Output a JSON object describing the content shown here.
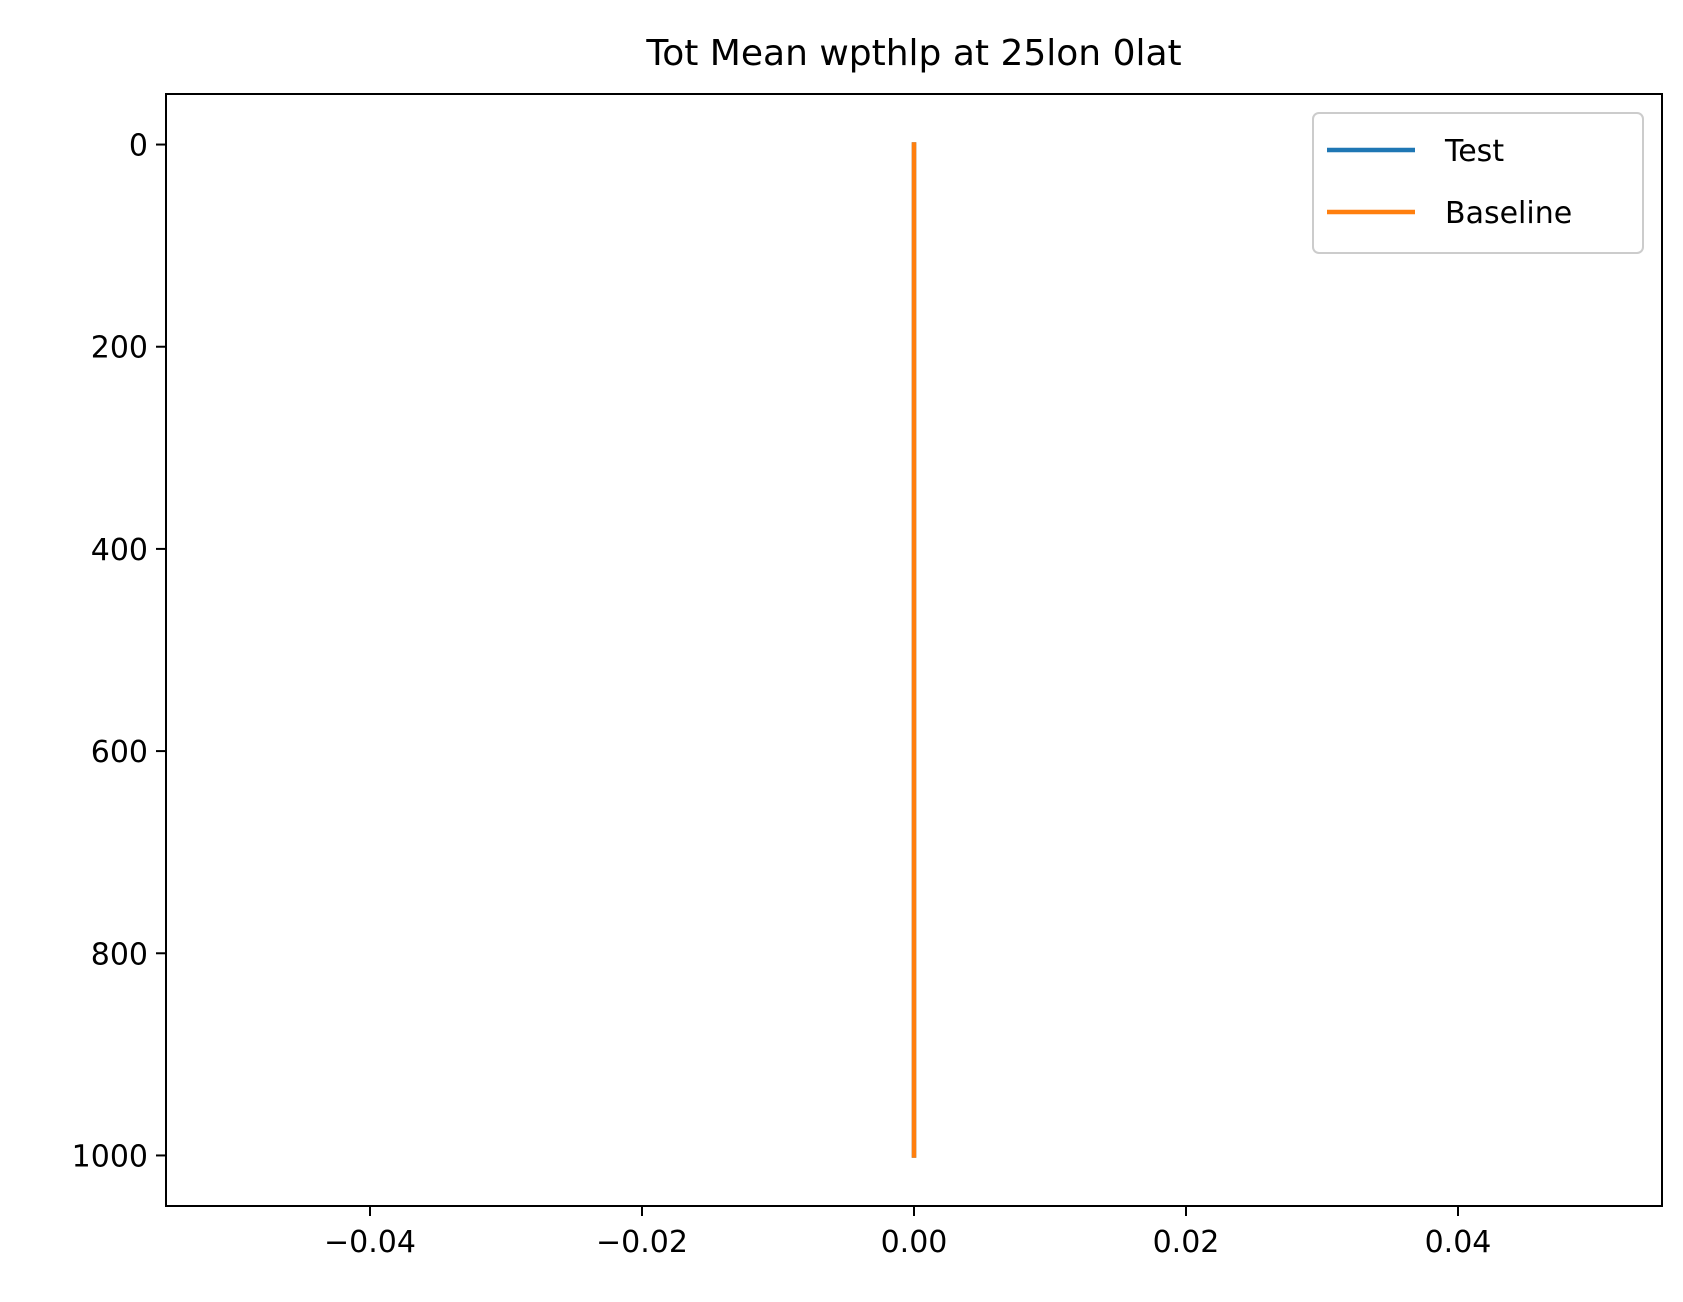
{
  "chart_data": {
    "type": "line",
    "title": "Tot Mean wpthlp at 25lon 0lat",
    "xlabel": "",
    "ylabel": "",
    "xlim": [
      -0.055,
      0.055
    ],
    "ylim": [
      1050,
      -50
    ],
    "y_inverted": true,
    "grid": false,
    "legend_placement": "top-right",
    "xticks": [
      -0.04,
      -0.02,
      0.0,
      0.02,
      0.04
    ],
    "xtick_labels": [
      "−0.04",
      "−0.02",
      "0.00",
      "0.02",
      "0.04"
    ],
    "yticks": [
      0,
      200,
      400,
      600,
      800,
      1000
    ],
    "ytick_labels": [
      "0",
      "200",
      "400",
      "600",
      "800",
      "1000"
    ],
    "series": [
      {
        "name": "Test",
        "color": "#1f77b4",
        "x": [
          0,
          0
        ],
        "y": [
          0,
          1000
        ]
      },
      {
        "name": "Baseline",
        "color": "#ff7f0e",
        "x": [
          0,
          0
        ],
        "y": [
          0,
          1000
        ]
      }
    ]
  }
}
